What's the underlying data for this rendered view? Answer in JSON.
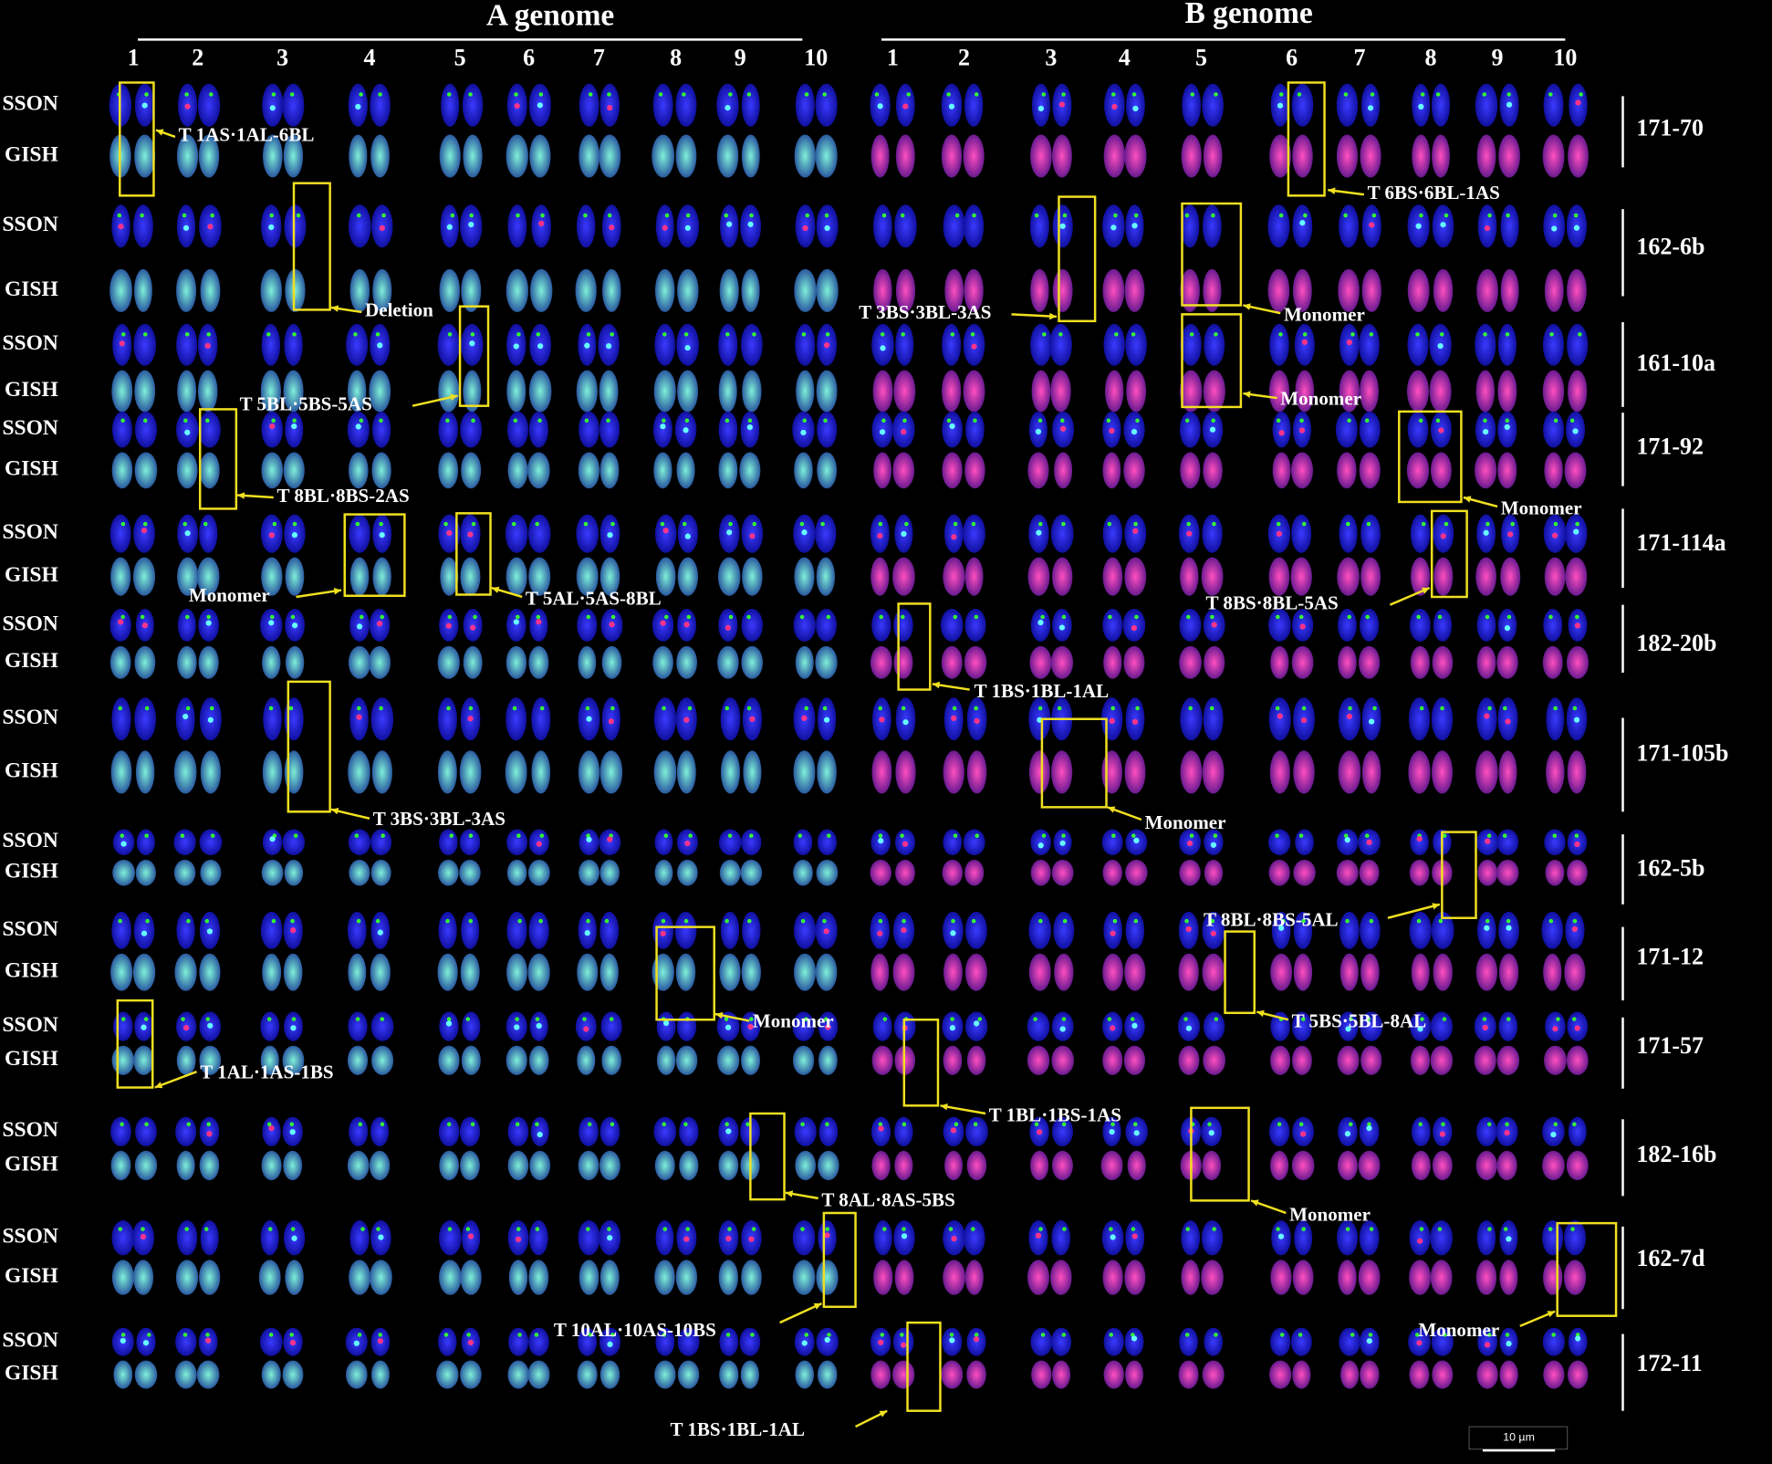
{
  "headers": {
    "a_genome": "A genome",
    "b_genome": "B genome"
  },
  "a_columns": [
    "1",
    "2",
    "3",
    "4",
    "5",
    "6",
    "7",
    "8",
    "9",
    "10"
  ],
  "b_columns": [
    "1",
    "2",
    "3",
    "4",
    "5",
    "6",
    "7",
    "8",
    "9",
    "10"
  ],
  "rows": [
    {
      "line": "171-70",
      "probes": [
        "SSON",
        "GISH"
      ]
    },
    {
      "line": "162-6b",
      "probes": [
        "SSON",
        "GISH"
      ]
    },
    {
      "line": "161-10a",
      "probes": [
        "SSON",
        "GISH"
      ]
    },
    {
      "line": "171-92",
      "probes": [
        "SSON",
        "GISH"
      ]
    },
    {
      "line": "171-114a",
      "probes": [
        "SSON",
        "GISH"
      ]
    },
    {
      "line": "182-20b",
      "probes": [
        "SSON",
        "GISH"
      ]
    },
    {
      "line": "171-105b",
      "probes": [
        "SSON",
        "GISH"
      ]
    },
    {
      "line": "162-5b",
      "probes": [
        "SSON",
        "GISH"
      ]
    },
    {
      "line": "171-12",
      "probes": [
        "SSON",
        "GISH"
      ]
    },
    {
      "line": "171-57",
      "probes": [
        "SSON",
        "GISH"
      ]
    },
    {
      "line": "182-16b",
      "probes": [
        "SSON",
        "GISH"
      ]
    },
    {
      "line": "162-7d",
      "probes": [
        "SSON",
        "GISH"
      ]
    },
    {
      "line": "172-11",
      "probes": [
        "SSON",
        "GISH"
      ]
    }
  ],
  "annotations": [
    "T 1AS·1AL-6BL",
    "T 6BS·6BL-1AS",
    "Deletion",
    "T 3BS·3BL-3AS",
    "Monomer",
    "T 5BL·5BS-5AS",
    "Monomer",
    "T 8BL·8BS-2AS",
    "Monomer",
    "Monomer",
    "T 5AL·5AS-8BL",
    "T 8BS·8BL-5AS",
    "T 1BS·1BL-1AL",
    "T 3BS·3BL-3AS",
    "Monomer",
    "T 8BL·8BS-5AL",
    "Monomer",
    "T 5BS·5BL-8AL",
    "T 1AL·1AS-1BS",
    "T 1BL·1BS-1AS",
    "T 8AL·8AS-5BS",
    "Monomer",
    "T 10AL·10AS-10BS",
    "Monomer",
    "T 1BS·1BL-1AL"
  ],
  "scale_bar": "10 µm"
}
